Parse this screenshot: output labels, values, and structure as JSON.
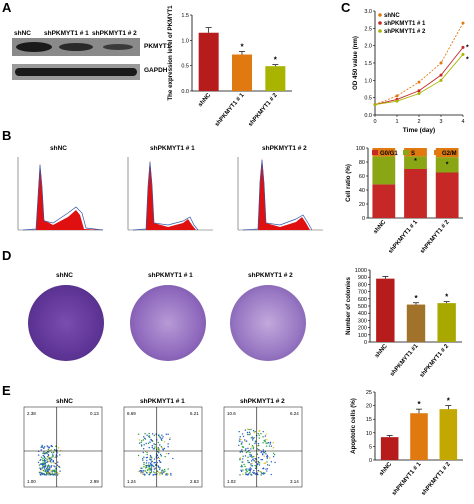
{
  "panels": {
    "A": {
      "letter": "A",
      "blot": {
        "lanes": [
          "shNC",
          "shPKMYT1 # 1",
          "shPKMYT1 # 2"
        ],
        "bands": [
          "PKMYT1",
          "GAPDH"
        ]
      }
    },
    "B": {
      "letter": "B",
      "flow_titles": [
        "shNC",
        "shPKMYT1 # 1",
        "shPKMYT1 # 2"
      ]
    },
    "C": {
      "letter": "C"
    },
    "D": {
      "letter": "D",
      "dish_titles": [
        "shNC",
        "shPKMYT1 # 1",
        "shPKMYT1 # 2"
      ]
    },
    "E": {
      "letter": "E",
      "scatter_titles": [
        "shNC",
        "shPKMYT1 # 1",
        "shPKMYT1 # 2"
      ],
      "quadrant_values": [
        [
          "2.38",
          "0.13",
          "1.00",
          "2.99"
        ],
        [
          "8.69",
          "6.21",
          "1.24",
          "2.63"
        ],
        [
          "10.6",
          "6.24",
          "1.02",
          "3.14"
        ]
      ]
    }
  },
  "chart_data": [
    {
      "id": "A-bar",
      "type": "bar",
      "categories": [
        "shNC",
        "shPKMYT1 # 1",
        "shPKMYT1 # 2"
      ],
      "values": [
        1.15,
        0.72,
        0.49
      ],
      "errors": [
        0.1,
        0.06,
        0.03
      ],
      "colors": [
        "#b71c1c",
        "#e07a10",
        "#a8b400"
      ],
      "significance": [
        "",
        "*",
        "*"
      ],
      "ylabel": "The expression level of PKMYT1",
      "ylim": [
        0,
        1.5
      ],
      "yticks": [
        "0.0",
        "0.5",
        "1.0",
        "1.5"
      ]
    },
    {
      "id": "C-line",
      "type": "line",
      "x": [
        0,
        1,
        2,
        3,
        4
      ],
      "xlabel": "Time (day)",
      "ylabel": "OD 450 value (nm)",
      "ylim": [
        0,
        3.0
      ],
      "yticks": [
        "0.0",
        "0.5",
        "1.0",
        "1.5",
        "2.0",
        "2.5",
        "3.0"
      ],
      "xticks": [
        "0",
        "1",
        "2",
        "3",
        "4"
      ],
      "legend": "top-left",
      "series": [
        {
          "name": "shNC",
          "values": [
            0.3,
            0.55,
            0.95,
            1.5,
            2.65
          ],
          "color": "#e07a10"
        },
        {
          "name": "shPKMYT1 # 1",
          "values": [
            0.3,
            0.45,
            0.7,
            1.15,
            1.95
          ],
          "color": "#c62828"
        },
        {
          "name": "shPKMYT1 # 2",
          "values": [
            0.3,
            0.4,
            0.62,
            1.0,
            1.75
          ],
          "color": "#a8b400"
        }
      ],
      "significance": "*"
    },
    {
      "id": "B-stack",
      "type": "bar",
      "categories": [
        "shNC",
        "shPKMYT1 # 1",
        "shPKMYT1 # 2"
      ],
      "series": [
        {
          "name": "G0/G1",
          "values": [
            48,
            70,
            65
          ],
          "color": "#c62828"
        },
        {
          "name": "S",
          "values": [
            40,
            18,
            22
          ],
          "color": "#8aa614"
        },
        {
          "name": "G2/M",
          "values": [
            12,
            12,
            13
          ],
          "color": "#e07a10"
        }
      ],
      "significance": [
        "",
        "*",
        "*"
      ],
      "ylabel": "Cell ratio (%)",
      "ylim": [
        0,
        100
      ],
      "yticks": [
        "0",
        "20",
        "40",
        "60",
        "80",
        "100"
      ],
      "legend": "top"
    },
    {
      "id": "D-bar",
      "type": "bar",
      "categories": [
        "shNC",
        "shPKMYT1 #1",
        "shPKMYT1 # 2"
      ],
      "values": [
        880,
        520,
        540
      ],
      "errors": [
        30,
        25,
        20
      ],
      "colors": [
        "#b71c1c",
        "#a0722a",
        "#a8a800"
      ],
      "significance": [
        "",
        "*",
        "*"
      ],
      "ylabel": "Number of colonies",
      "ylim": [
        0,
        1000
      ],
      "yticks": [
        "0",
        "100",
        "200",
        "300",
        "400",
        "500",
        "600",
        "700",
        "800",
        "900",
        "1000"
      ]
    },
    {
      "id": "E-bar",
      "type": "bar",
      "categories": [
        "shNC",
        "shPKMYT1 # 1",
        "shPKMYT1 # 2"
      ],
      "values": [
        8.4,
        17.2,
        18.7
      ],
      "errors": [
        0.6,
        1.5,
        1.3
      ],
      "colors": [
        "#b71c1c",
        "#e07a10",
        "#c2a800"
      ],
      "significance": [
        "",
        "*",
        "*"
      ],
      "ylabel": "Apoptotic cells (%)",
      "ylim": [
        0,
        25
      ],
      "yticks": [
        "0",
        "5",
        "10",
        "15",
        "20",
        "25"
      ]
    }
  ],
  "colors": {
    "dish": "#6a3fa0",
    "dish_light": "#d9cbe8",
    "flow_peak": "#e01010",
    "flow_line": "#3355aa"
  }
}
